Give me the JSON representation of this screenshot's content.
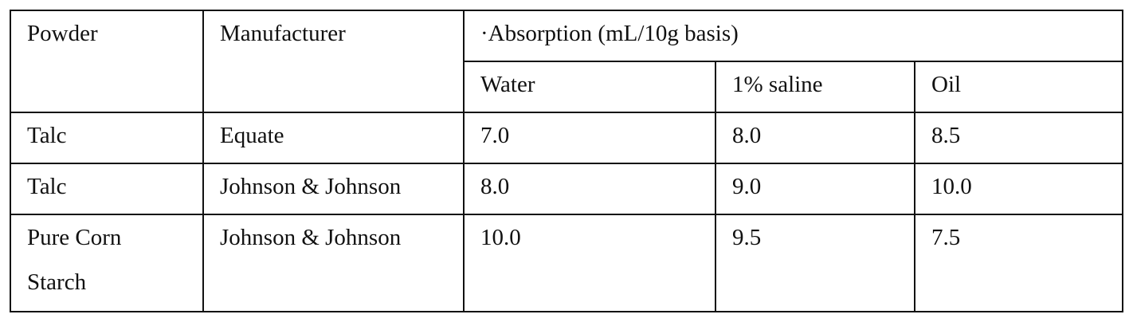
{
  "table": {
    "headers": {
      "powder": "Powder",
      "manufacturer": "Manufacturer",
      "absorption": "·Absorption (mL/10g basis)",
      "water": "Water",
      "saline": "1% saline",
      "oil": "Oil"
    },
    "rows": [
      {
        "powder": "Talc",
        "manufacturer": "Equate",
        "water": "7.0",
        "saline": "8.0",
        "oil": "8.5"
      },
      {
        "powder": "Talc",
        "manufacturer": "Johnson & Johnson",
        "water": "8.0",
        "saline": "9.0",
        "oil": "10.0"
      },
      {
        "powder": "Pure Corn Starch",
        "manufacturer": "Johnson & Johnson",
        "water": "10.0",
        "saline": "9.5",
        "oil": "7.5"
      }
    ]
  }
}
